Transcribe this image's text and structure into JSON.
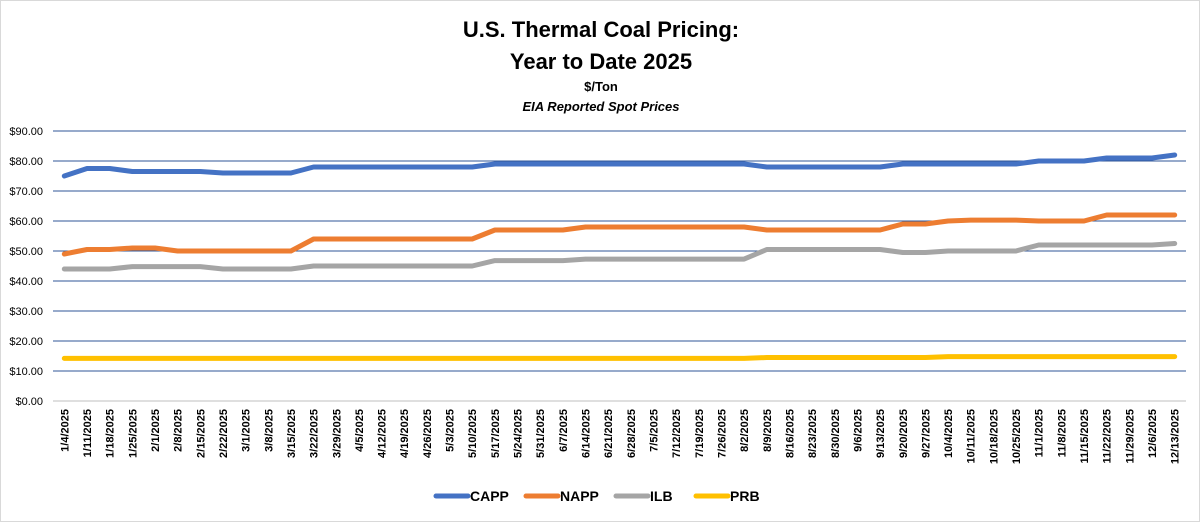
{
  "chart_data": {
    "type": "line",
    "title_line1": "U.S. Thermal Coal Pricing:",
    "title_line2": "Year to Date 2025",
    "subtitle": "$/Ton",
    "subtitle2": "EIA Reported Spot Prices",
    "xlabel": "",
    "ylabel": "",
    "ylim": [
      0,
      90
    ],
    "yticks": [
      "$0.00",
      "$10.00",
      "$20.00",
      "$30.00",
      "$40.00",
      "$50.00",
      "$60.00",
      "$70.00",
      "$80.00",
      "$90.00"
    ],
    "grid": true,
    "legend_position": "bottom",
    "x": [
      "1/4/2025",
      "1/11/2025",
      "1/18/2025",
      "1/25/2025",
      "2/1/2025",
      "2/8/2025",
      "2/15/2025",
      "2/22/2025",
      "3/1/2025",
      "3/8/2025",
      "3/15/2025",
      "3/22/2025",
      "3/29/2025",
      "4/5/2025",
      "4/12/2025",
      "4/19/2025",
      "4/26/2025",
      "5/3/2025",
      "5/10/2025",
      "5/17/2025",
      "5/24/2025",
      "5/31/2025",
      "6/7/2025",
      "6/14/2025",
      "6/21/2025",
      "6/28/2025",
      "7/5/2025",
      "7/12/2025",
      "7/19/2025",
      "7/26/2025",
      "8/2/2025",
      "8/9/2025",
      "8/16/2025",
      "8/23/2025",
      "8/30/2025",
      "9/6/2025",
      "9/13/2025",
      "9/20/2025",
      "9/27/2025",
      "10/4/2025",
      "10/11/2025",
      "10/18/2025",
      "10/25/2025",
      "11/1/2025",
      "11/8/2025",
      "11/15/2025",
      "11/22/2025",
      "11/29/2025",
      "12/6/2025",
      "12/13/2025"
    ],
    "series": [
      {
        "name": "CAPP",
        "color": "#4472C4",
        "values": [
          75,
          77.5,
          77.5,
          76.5,
          76.5,
          76.5,
          76.5,
          76,
          76,
          76,
          76,
          78,
          78,
          78,
          78,
          78,
          78,
          78,
          78,
          79,
          79,
          79,
          79,
          79,
          79,
          79,
          79,
          79,
          79,
          79,
          79,
          78,
          78,
          78,
          78,
          78,
          78,
          79,
          79,
          79,
          79,
          79,
          79,
          80,
          80,
          80,
          81,
          81,
          81,
          82
        ]
      },
      {
        "name": "NAPP",
        "color": "#ED7D31",
        "values": [
          49,
          50.5,
          50.5,
          51,
          51,
          50,
          50,
          50,
          50,
          50,
          50,
          54,
          54,
          54,
          54,
          54,
          54,
          54,
          54,
          57,
          57,
          57,
          57,
          58,
          58,
          58,
          58,
          58,
          58,
          58,
          58,
          57,
          57,
          57,
          57,
          57,
          57,
          59,
          59,
          60,
          60.3,
          60.3,
          60.3,
          60,
          60,
          60,
          62,
          62,
          62,
          62
        ]
      },
      {
        "name": "ILB",
        "color": "#A5A5A5",
        "values": [
          44,
          44,
          44,
          44.8,
          44.8,
          44.8,
          44.8,
          44,
          44,
          44,
          44,
          45,
          45,
          45,
          45,
          45,
          45,
          45,
          45,
          46.8,
          46.8,
          46.8,
          46.8,
          47.3,
          47.3,
          47.3,
          47.3,
          47.3,
          47.3,
          47.3,
          47.3,
          50.5,
          50.5,
          50.5,
          50.5,
          50.5,
          50.5,
          49.5,
          49.5,
          50,
          50,
          50,
          50,
          52,
          52,
          52,
          52,
          52,
          52,
          52.5
        ]
      },
      {
        "name": "PRB",
        "color": "#FFC000",
        "values": [
          14.2,
          14.2,
          14.2,
          14.2,
          14.2,
          14.2,
          14.2,
          14.2,
          14.2,
          14.2,
          14.2,
          14.2,
          14.2,
          14.2,
          14.2,
          14.2,
          14.2,
          14.2,
          14.2,
          14.2,
          14.2,
          14.2,
          14.2,
          14.2,
          14.2,
          14.2,
          14.2,
          14.2,
          14.2,
          14.2,
          14.2,
          14.5,
          14.5,
          14.5,
          14.5,
          14.5,
          14.5,
          14.5,
          14.5,
          14.8,
          14.8,
          14.8,
          14.8,
          14.8,
          14.8,
          14.8,
          14.8,
          14.8,
          14.8,
          14.8
        ]
      }
    ]
  }
}
